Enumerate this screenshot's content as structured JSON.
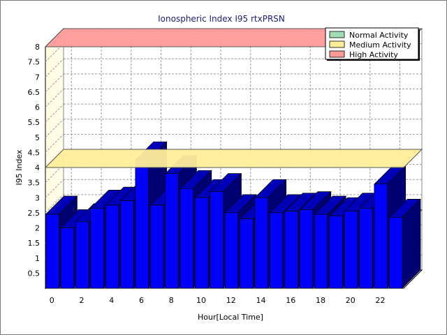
{
  "chart_data": {
    "type": "bar",
    "title": "Ionospheric Index I95 rtxPRSN",
    "xlabel": "Hour[Local Time]",
    "ylabel": "I95 Index",
    "ylim": [
      0,
      8
    ],
    "yticks": [
      "0.5",
      "1",
      "1.5",
      "2",
      "2.5",
      "3",
      "3.5",
      "4",
      "4.5",
      "5",
      "5.5",
      "6",
      "6.5",
      "7",
      "7.5",
      "8"
    ],
    "xticks": [
      "0",
      "2",
      "4",
      "6",
      "8",
      "10",
      "12",
      "14",
      "16",
      "18",
      "20",
      "22"
    ],
    "x": [
      0,
      1,
      2,
      3,
      4,
      5,
      6,
      7,
      8,
      9,
      10,
      11,
      12,
      13,
      14,
      15,
      16,
      17,
      18,
      19,
      20,
      21,
      22,
      23
    ],
    "values": [
      2.45,
      2.0,
      2.2,
      2.65,
      2.75,
      2.9,
      4.25,
      2.75,
      3.8,
      3.3,
      3.0,
      3.2,
      2.5,
      2.3,
      3.0,
      2.5,
      2.55,
      2.6,
      2.45,
      2.4,
      2.55,
      2.65,
      3.45,
      2.35
    ],
    "bar_color": "#0000ff",
    "bands": [
      {
        "name": "Normal Activity",
        "from": 0,
        "to": 2,
        "color": "#a0dcb4"
      },
      {
        "name": "Medium Activity",
        "from": 2,
        "to": 4,
        "color": "#ffee99"
      },
      {
        "name": "High Activity",
        "from": 4,
        "to": 8,
        "color": "#ff9a9a"
      }
    ],
    "legend_position": "top-right",
    "grid": true
  }
}
